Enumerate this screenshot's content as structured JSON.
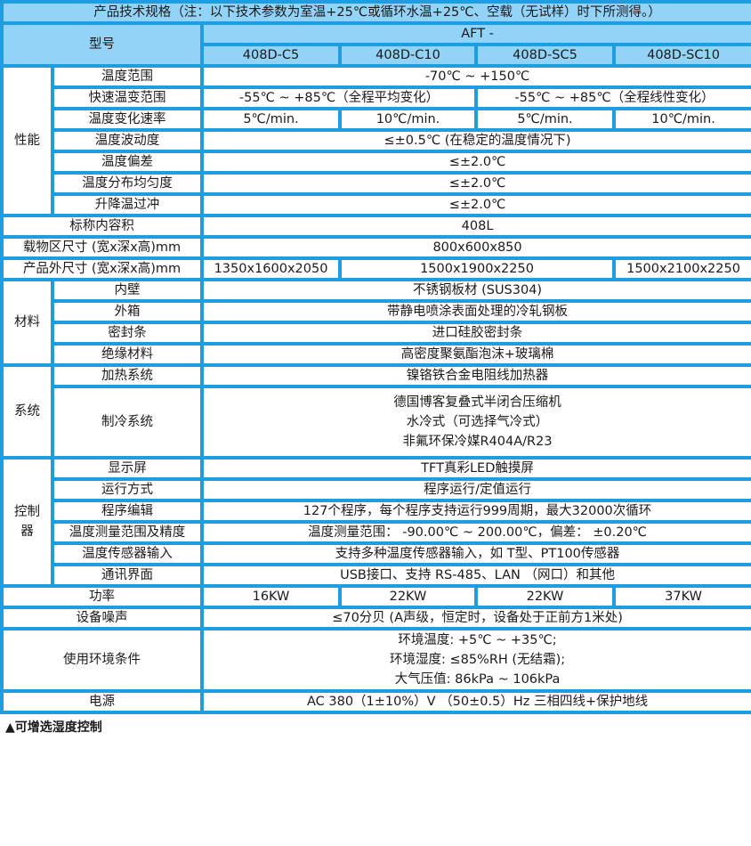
{
  "title": "产品技术规格（注：以下技术参数为室温+25℃或循环水温+25℃、空载（无试样）时下所测得。）",
  "model_label": "型号",
  "model_prefix": "AFT -",
  "models": [
    "408D-C5",
    "408D-C10",
    "408D-SC5",
    "408D-SC10"
  ],
  "performance": {
    "category": "性能",
    "temp_range": {
      "label": "温度范围",
      "value": "-70℃ ~ +150℃"
    },
    "rapid_range": {
      "label": "快速温变范围",
      "values": [
        "-55℃ ~ +85℃（全程平均变化）",
        "-55℃ ~ +85℃（全程线性变化）"
      ]
    },
    "rate": {
      "label": "温度变化速率",
      "values": [
        "5℃/min.",
        "10℃/min.",
        "5℃/min.",
        "10℃/min."
      ]
    },
    "fluctuation": {
      "label": "温度波动度",
      "value": "≤±0.5℃ (在稳定的温度情况下)"
    },
    "deviation": {
      "label": "温度偏差",
      "value": "≤±2.0℃"
    },
    "uniformity": {
      "label": "温度分布均匀度",
      "value": "≤±2.0℃"
    },
    "overshoot": {
      "label": "升降温过冲",
      "value": "≤±2.0℃"
    }
  },
  "volume": {
    "label": "标称内容积",
    "value": "408L"
  },
  "load_size": {
    "label": "载物区尺寸 (宽x深x高)mm",
    "value": "800x600x850"
  },
  "outer_size": {
    "label": "产品外尺寸 (宽x深x高)mm",
    "values": [
      "1350x1600x2050",
      "1500x1900x2250",
      "1500x2100x2250"
    ]
  },
  "materials": {
    "category": "材料",
    "inner": {
      "label": "内壁",
      "value": "不锈钢板材 (SUS304)"
    },
    "outer": {
      "label": "外箱",
      "value": "带静电喷涂表面处理的冷轧钢板"
    },
    "seal": {
      "label": "密封条",
      "value": "进口硅胶密封条"
    },
    "insulation": {
      "label": "绝缘材料",
      "value": "高密度聚氨酯泡沫+玻璃棉"
    }
  },
  "system": {
    "category": "系统",
    "heating": {
      "label": "加热系统",
      "value": "镍铬铁合金电阻线加热器"
    },
    "cooling": {
      "label": "制冷系统",
      "lines": [
        "德国博客复叠式半闭合压缩机",
        "水冷式（可选择气冷式）",
        "非氟环保冷媒R404A/R23"
      ]
    }
  },
  "controller": {
    "category": "控制器",
    "display": {
      "label": "显示屏",
      "value": "TFT真彩LED触摸屏"
    },
    "mode": {
      "label": "运行方式",
      "value": "程序运行/定值运行"
    },
    "program": {
      "label": "程序编辑",
      "value": "127个程序，每个程序支持运行999周期，最大32000次循环"
    },
    "measure": {
      "label": "温度测量范围及精度",
      "value": "温度测量范围： -90.00℃ ~ 200.00℃，偏差： ±0.20℃"
    },
    "sensor": {
      "label": "温度传感器输入",
      "value": "支持多种温度传感器输入，如 T型、PT100传感器"
    },
    "comm": {
      "label": "通讯界面",
      "value": "USB接口、支持 RS-485、LAN （网口）和其他"
    }
  },
  "power": {
    "label": "功率",
    "values": [
      "16KW",
      "22KW",
      "22KW",
      "37KW"
    ]
  },
  "noise": {
    "label": "设备噪声",
    "value": "≤70分贝 (A声级，恒定时，设备处于正前方1米处)"
  },
  "environment": {
    "label": "使用环境条件",
    "lines": [
      "环境温度: +5℃ ~ +35℃;",
      "环境湿度: ≤85%RH (无结霜);",
      "大气压值: 86kPa ~ 106kPa"
    ]
  },
  "supply": {
    "label": "电源",
    "value": "AC 380（1±10%）V （50±0.5）Hz 三相四线+保护地线"
  },
  "footnote": "▲可增选湿度控制",
  "colors": {
    "border": "#1e9de2",
    "header_fill": "#92d3f7"
  }
}
